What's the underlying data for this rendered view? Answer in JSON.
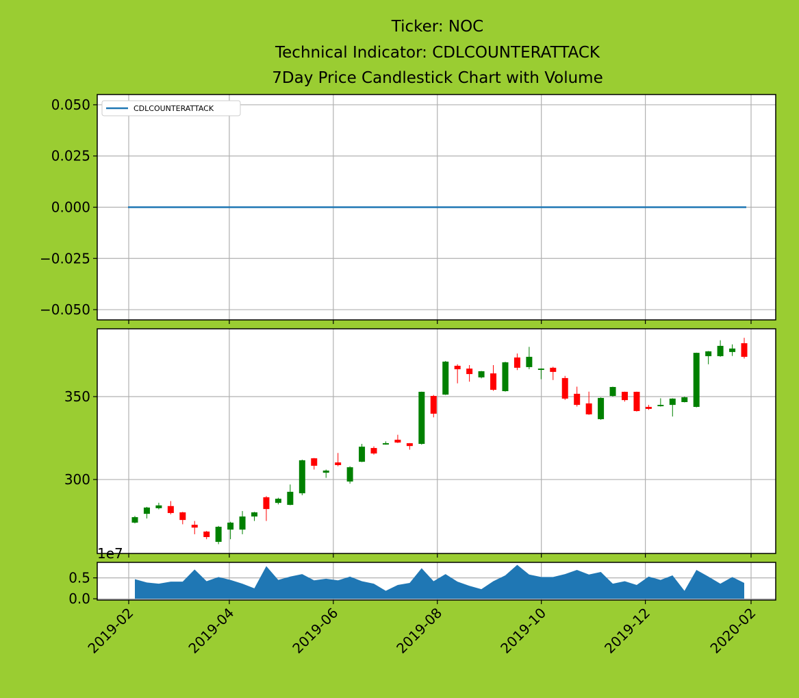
{
  "chart_data": [
    {
      "type": "line",
      "title": [
        "Ticker: NOC",
        "Technical Indicator: CDLCOUNTERATTACK",
        "7Day Price Candlestick Chart with Volume"
      ],
      "series": [
        {
          "name": "CDLCOUNTERATTACK",
          "color": "#1f77b4",
          "values": [
            0,
            0,
            0,
            0,
            0,
            0,
            0,
            0,
            0,
            0,
            0,
            0,
            0,
            0,
            0,
            0,
            0,
            0,
            0,
            0,
            0,
            0,
            0,
            0,
            0,
            0,
            0,
            0,
            0,
            0,
            0,
            0,
            0,
            0,
            0,
            0,
            0,
            0,
            0,
            0,
            0,
            0,
            0,
            0,
            0,
            0,
            0,
            0,
            0,
            0,
            0,
            0
          ]
        }
      ],
      "ylim": [
        -0.055,
        0.055
      ],
      "yticks": [
        {
          "value": -0.05,
          "label": "−0.050"
        },
        {
          "value": -0.025,
          "label": "−0.025"
        },
        {
          "value": 0,
          "label": "0.000"
        },
        {
          "value": 0.025,
          "label": "0.025"
        },
        {
          "value": 0.05,
          "label": "0.050"
        }
      ],
      "grid": true,
      "legend": "upper left"
    },
    {
      "type": "candlestick",
      "open": [
        274,
        279.3,
        282.7,
        284,
        280.2,
        272.7,
        268.6,
        262.4,
        269.8,
        269.8,
        277.7,
        289.3,
        285.9,
        284.7,
        291.7,
        312.8,
        304.1,
        310.3,
        298.8,
        310.7,
        319,
        321.1,
        324,
        321.9,
        321.5,
        350.4,
        351.2,
        368.6,
        366.9,
        361.6,
        364,
        353.3,
        373.6,
        367.8,
        366.1,
        367.4,
        361.2,
        351.7,
        345.9,
        336.4,
        350.4,
        352.9,
        352.9,
        343.8,
        344.2,
        345,
        346.7,
        343.8,
        374.4,
        374.4,
        376.9,
        382.2
      ],
      "high": [
        278,
        283.5,
        286,
        287,
        280.5,
        275,
        269,
        272,
        274.5,
        281,
        280.5,
        290,
        289,
        297,
        312,
        313,
        306,
        316,
        308,
        321.5,
        320,
        323,
        327,
        322,
        353,
        351,
        371.5,
        369.5,
        369,
        365.5,
        369,
        371,
        376,
        380,
        367,
        368,
        362.5,
        356,
        353,
        349.5,
        356,
        353,
        353,
        345,
        349,
        349,
        350,
        376.5,
        377.5,
        384,
        381.5,
        385.5
      ],
      "low": [
        273.5,
        276.5,
        282,
        279,
        273,
        267,
        264,
        261,
        264,
        267,
        275,
        275,
        285,
        284.5,
        290.5,
        306,
        301,
        308,
        297.5,
        310.5,
        315,
        321,
        322,
        318,
        321,
        337.5,
        351,
        358,
        359,
        361,
        353.5,
        353,
        366,
        366.5,
        360.5,
        360,
        348,
        344,
        339,
        336,
        350,
        347,
        341,
        342,
        344,
        338,
        346.5,
        343.5,
        369.5,
        374,
        374.5,
        373
      ],
      "close": [
        277.3,
        283.1,
        284.4,
        279.8,
        275.6,
        271,
        265.3,
        271.5,
        274,
        277.7,
        280.2,
        282.2,
        288.4,
        292.6,
        311.6,
        308.3,
        305.4,
        308.7,
        307.4,
        319.8,
        315.7,
        321.9,
        322.3,
        320.2,
        352.9,
        339.7,
        371.1,
        366.5,
        363.6,
        365.3,
        354.1,
        370.7,
        367.4,
        374,
        366.9,
        364.9,
        348.8,
        345,
        339.3,
        349.2,
        355.8,
        347.9,
        341.3,
        342.6,
        345,
        348.8,
        349.6,
        376.4,
        377.3,
        380.6,
        379,
        374
      ],
      "up_color": "green",
      "down_color": "red",
      "ylim": [
        255.4,
        390.9
      ],
      "yticks": [
        300,
        350
      ],
      "grid": true
    },
    {
      "type": "area",
      "color": "#1f77b4",
      "values": [
        0.47,
        0.39,
        0.36,
        0.41,
        0.41,
        0.7,
        0.42,
        0.52,
        0.45,
        0.36,
        0.25,
        0.78,
        0.45,
        0.53,
        0.59,
        0.44,
        0.48,
        0.44,
        0.53,
        0.42,
        0.36,
        0.19,
        0.33,
        0.38,
        0.73,
        0.42,
        0.59,
        0.41,
        0.31,
        0.23,
        0.42,
        0.56,
        0.81,
        0.58,
        0.52,
        0.52,
        0.59,
        0.69,
        0.58,
        0.64,
        0.36,
        0.42,
        0.33,
        0.53,
        0.45,
        0.56,
        0.19,
        0.69,
        0.53,
        0.36,
        0.52,
        0.38
      ],
      "ylim": [
        -0.03,
        0.87
      ],
      "yticks": [
        {
          "value": 0,
          "label": "0.0"
        },
        0.5
      ],
      "offset_label": "1e7",
      "xticks": [
        "2019-02",
        "2019-04",
        "2019-06",
        "2019-08",
        "2019-10",
        "2019-12",
        "2020-02"
      ],
      "grid": true
    }
  ]
}
